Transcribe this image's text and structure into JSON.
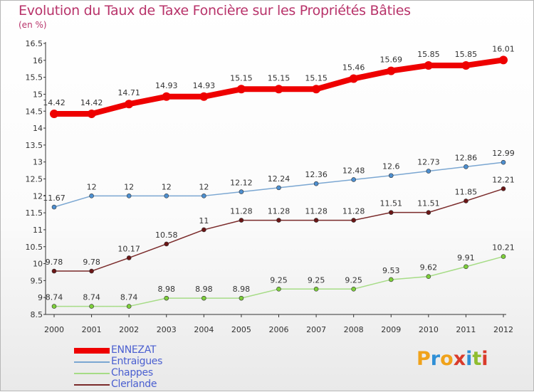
{
  "title": "Evolution du Taux de Taxe Foncière sur les Propriétés Bâties",
  "subtitle": "(en %)",
  "logo": {
    "text": "Proxiti",
    "letter_colors": [
      "#f0a21a",
      "#2f8fd6",
      "#f0a21a",
      "#d93b2b",
      "#2f8fd6",
      "#8fbd2f",
      "#d93b2b"
    ]
  },
  "chart_data": {
    "type": "line",
    "title": "Evolution du Taux de Taxe Foncière sur les Propriétés Bâties",
    "ylabel": "(en %)",
    "xlabel": "",
    "x": [
      "2000",
      "2001",
      "2002",
      "2003",
      "2004",
      "2005",
      "2006",
      "2007",
      "2008",
      "2009",
      "2010",
      "2011",
      "2012"
    ],
    "ylim": [
      8.5,
      16.5
    ],
    "yticks": [
      "8.5",
      "9",
      "9.5",
      "10",
      "10.5",
      "11",
      "11.5",
      "12",
      "12.5",
      "13",
      "13.5",
      "14",
      "14.5",
      "15",
      "15.5",
      "16",
      "16.5"
    ],
    "grid": false,
    "legend_position": "bottom-left",
    "series": [
      {
        "name": "ENNEZAT",
        "color": "#ee0000",
        "marker_color": "#ee0000",
        "emphasis": true,
        "values": [
          14.42,
          14.42,
          14.71,
          14.93,
          14.93,
          15.15,
          15.15,
          15.15,
          15.46,
          15.69,
          15.85,
          15.85,
          16.01
        ]
      },
      {
        "name": "Entraigues",
        "color": "#7ba7d2",
        "marker_color": "#4d8fd0",
        "emphasis": false,
        "values": [
          11.67,
          12,
          12,
          12,
          12,
          12.12,
          12.24,
          12.36,
          12.48,
          12.6,
          12.73,
          12.86,
          12.99
        ]
      },
      {
        "name": "Chappes",
        "color": "#a6dc86",
        "marker_color": "#7dcf3a",
        "emphasis": false,
        "values": [
          8.74,
          8.74,
          8.74,
          8.98,
          8.98,
          8.98,
          9.25,
          9.25,
          9.25,
          9.53,
          9.62,
          9.91,
          10.21
        ]
      },
      {
        "name": "Clerlande",
        "color": "#7a2a2a",
        "marker_color": "#6b1616",
        "emphasis": false,
        "values": [
          9.78,
          9.78,
          10.17,
          10.58,
          11,
          11.28,
          11.28,
          11.28,
          11.28,
          11.51,
          11.51,
          11.85,
          12.21
        ]
      }
    ]
  }
}
